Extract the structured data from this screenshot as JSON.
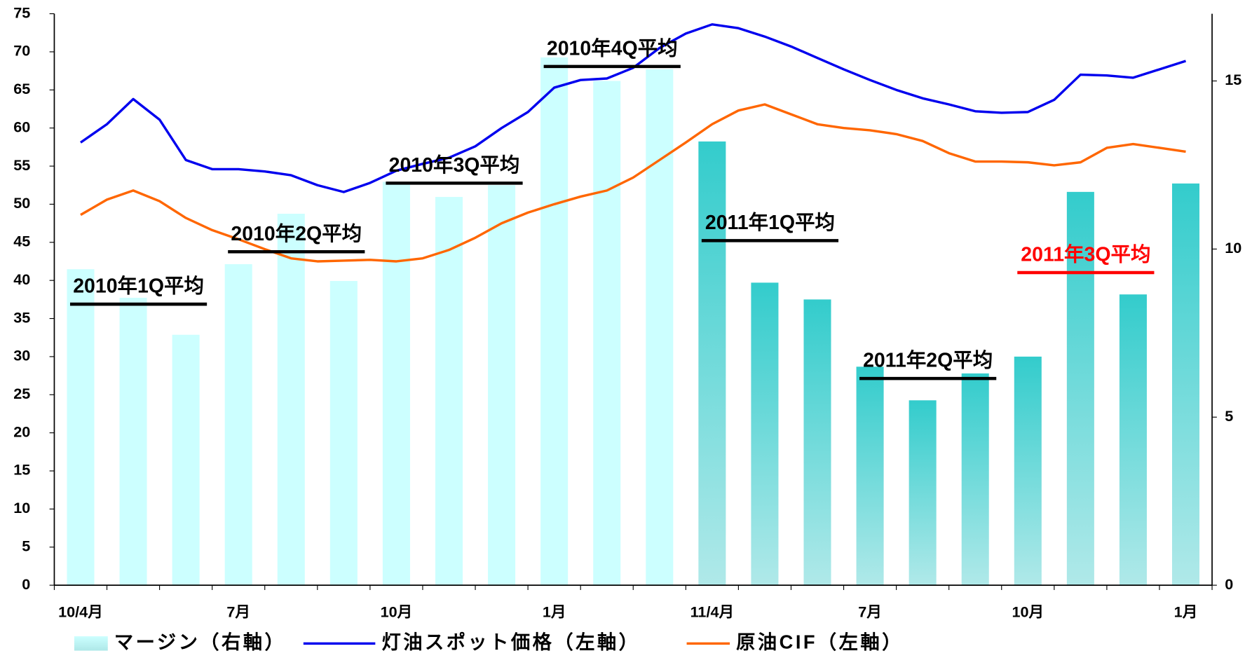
{
  "chart_data": {
    "type": "bar_line",
    "categories": [
      "10/4月",
      null,
      null,
      "7月",
      null,
      null,
      "10月",
      null,
      null,
      "1月",
      null,
      null,
      "11/4月",
      null,
      null,
      "7月",
      null,
      null,
      "10月",
      null,
      null,
      "1月"
    ],
    "bars": {
      "name": "マージン（右軸）",
      "axis": "y2",
      "color": "#ccffff",
      "colors": [
        "#ccffff",
        "#ccffff",
        "#ccffff",
        "#ccffff",
        "#ccffff",
        "#ccffff",
        "#ccffff",
        "#ccffff",
        "#ccffff",
        "#ccffff",
        "#ccffff",
        "#ccffff",
        "#33cccc",
        "#33cccc",
        "#33cccc",
        "#33cccc",
        "#33cccc",
        "#33cccc",
        "#33cccc",
        "#33cccc",
        "#33cccc",
        "#33cccc"
      ],
      "values": [
        9.4,
        8.55,
        7.45,
        9.55,
        11.05,
        9.05,
        12.0,
        11.55,
        11.9,
        15.7,
        15.0,
        15.35,
        13.2,
        9.0,
        8.5,
        6.5,
        5.5,
        6.3,
        6.8,
        11.7,
        8.65,
        11.95
      ]
    },
    "x": [
      0,
      0.5,
      1,
      1.5,
      2,
      2.5,
      3,
      3.5,
      4,
      4.5,
      5,
      5.5,
      6,
      6.5,
      7,
      7.5,
      8,
      8.5,
      9,
      9.5,
      10,
      10.5,
      11,
      11.5,
      12,
      12.5,
      13,
      13.5,
      14,
      14.5,
      15,
      15.5,
      16,
      16.5,
      17,
      17.5,
      18,
      18.5,
      19,
      19.5,
      20,
      20.5,
      21
    ],
    "series": [
      {
        "name": "灯油スポット価格（左軸）",
        "color": "#0000ee",
        "values": [
          58.1,
          60.5,
          63.8,
          61.1,
          55.8,
          54.6,
          54.6,
          54.3,
          53.8,
          52.5,
          51.6,
          52.8,
          54.4,
          55.3,
          56.1,
          57.6,
          60.0,
          62.1,
          65.3,
          66.3,
          66.5,
          67.9,
          70.5,
          72.4,
          73.6,
          73.1,
          72.0,
          70.7,
          69.2,
          67.7,
          66.3,
          65.0,
          63.9,
          63.1,
          62.2,
          62.0,
          62.1,
          63.7,
          67.0,
          66.9,
          66.6,
          67.7,
          68.8
        ]
      },
      {
        "name": "原油CIF（左軸）",
        "color": "#ff6600",
        "values": [
          48.6,
          50.6,
          51.8,
          50.4,
          48.2,
          46.6,
          45.4,
          44.1,
          42.9,
          42.5,
          42.6,
          42.7,
          42.5,
          42.9,
          44.0,
          45.6,
          47.5,
          48.9,
          50.0,
          51.0,
          51.8,
          53.5,
          55.8,
          58.1,
          60.5,
          62.3,
          63.1,
          61.8,
          60.5,
          60.0,
          59.7,
          59.2,
          58.3,
          56.7,
          55.6,
          55.6,
          55.5,
          55.1,
          55.5,
          57.4,
          57.9,
          57.4,
          56.9
        ]
      }
    ],
    "annotations": [
      {
        "text": "2010年1Q平均",
        "value": 8.36,
        "color": "#000000"
      },
      {
        "text": "2010年2Q平均",
        "value": 9.92,
        "color": "#000000"
      },
      {
        "text": "2010年3Q平均",
        "value": 11.96,
        "color": "#000000"
      },
      {
        "text": "2010年4Q平均",
        "value": 15.43,
        "color": "#000000"
      },
      {
        "text": "2011年1Q平均",
        "value": 10.25,
        "color": "#000000"
      },
      {
        "text": "2011年2Q平均",
        "value": 6.15,
        "color": "#000000"
      },
      {
        "text": "2011年3Q平均",
        "value": 9.3,
        "color": "#ff0000"
      }
    ],
    "xlim": [
      -0.5,
      21.5
    ],
    "ylim": [
      0,
      75
    ],
    "yticks": [
      0,
      5,
      10,
      15,
      20,
      25,
      30,
      35,
      40,
      45,
      50,
      55,
      60,
      65,
      70,
      75
    ],
    "y2lim": [
      0,
      17
    ],
    "y2ticks": [
      0,
      5,
      10,
      15
    ],
    "grid": false,
    "legend": "bottom"
  }
}
